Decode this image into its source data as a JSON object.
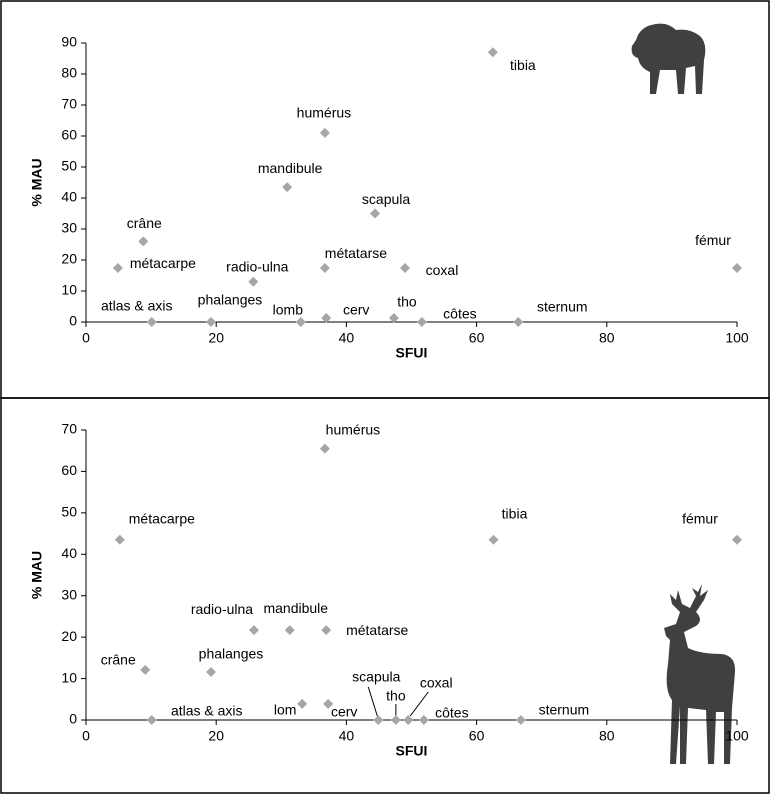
{
  "chart_data": [
    {
      "type": "scatter",
      "xlabel": "SFUI",
      "ylabel": "% MAU",
      "color": "#a6a6a6",
      "xlim": [
        0,
        100
      ],
      "xticks": [
        0,
        20,
        40,
        60,
        80,
        100
      ],
      "ylim": [
        0,
        90
      ],
      "yticks": [
        0,
        10,
        20,
        30,
        40,
        50,
        60,
        70,
        80,
        90
      ],
      "labels": [
        "atlas & axis",
        "phalanges",
        "lomb",
        "cerv",
        "tho",
        "côtes",
        "sternum",
        "crâne",
        "métacarpe",
        "radio-ulna",
        "mandibule",
        "humérus",
        "scapula",
        "métatarse",
        "coxal",
        "tibia",
        "fémur"
      ],
      "x": [
        10.1,
        19.2,
        33,
        36.9,
        47.3,
        51.6,
        66.4,
        8.8,
        4.9,
        25.7,
        30.9,
        36.7,
        44.4,
        36.7,
        49,
        62.5,
        100
      ],
      "values": [
        0,
        0,
        0,
        1.3,
        1.3,
        0,
        0,
        26,
        17.4,
        13,
        43.5,
        61,
        35,
        17.4,
        17.4,
        87,
        17.4
      ]
    },
    {
      "type": "scatter",
      "xlabel": "SFUI",
      "ylabel": "% MAU",
      "color": "#a6a6a6",
      "xlim": [
        0,
        100
      ],
      "xticks": [
        0,
        20,
        40,
        60,
        80,
        100
      ],
      "ylim": [
        0,
        70
      ],
      "yticks": [
        0,
        10,
        20,
        30,
        40,
        50,
        60,
        70
      ],
      "labels": [
        "humérus",
        "métacarpe",
        "tibia",
        "fémur",
        "radio-ulna",
        "mandibule",
        "métatarse",
        "crâne",
        "phalanges",
        "lom",
        "cerv",
        "scapula",
        "tho",
        "coxal",
        "côtes",
        "atlas & axis",
        "sternum"
      ],
      "x": [
        36.7,
        5.2,
        62.6,
        100,
        25.8,
        31.3,
        36.9,
        9.1,
        19.2,
        33.2,
        37.2,
        44.9,
        47.6,
        49.5,
        51.9,
        10.1,
        66.8
      ],
      "values": [
        65.5,
        43.5,
        43.5,
        43.5,
        21.7,
        21.7,
        21.7,
        12.1,
        11.6,
        3.9,
        3.9,
        0,
        0,
        0,
        0,
        0,
        0
      ]
    }
  ]
}
